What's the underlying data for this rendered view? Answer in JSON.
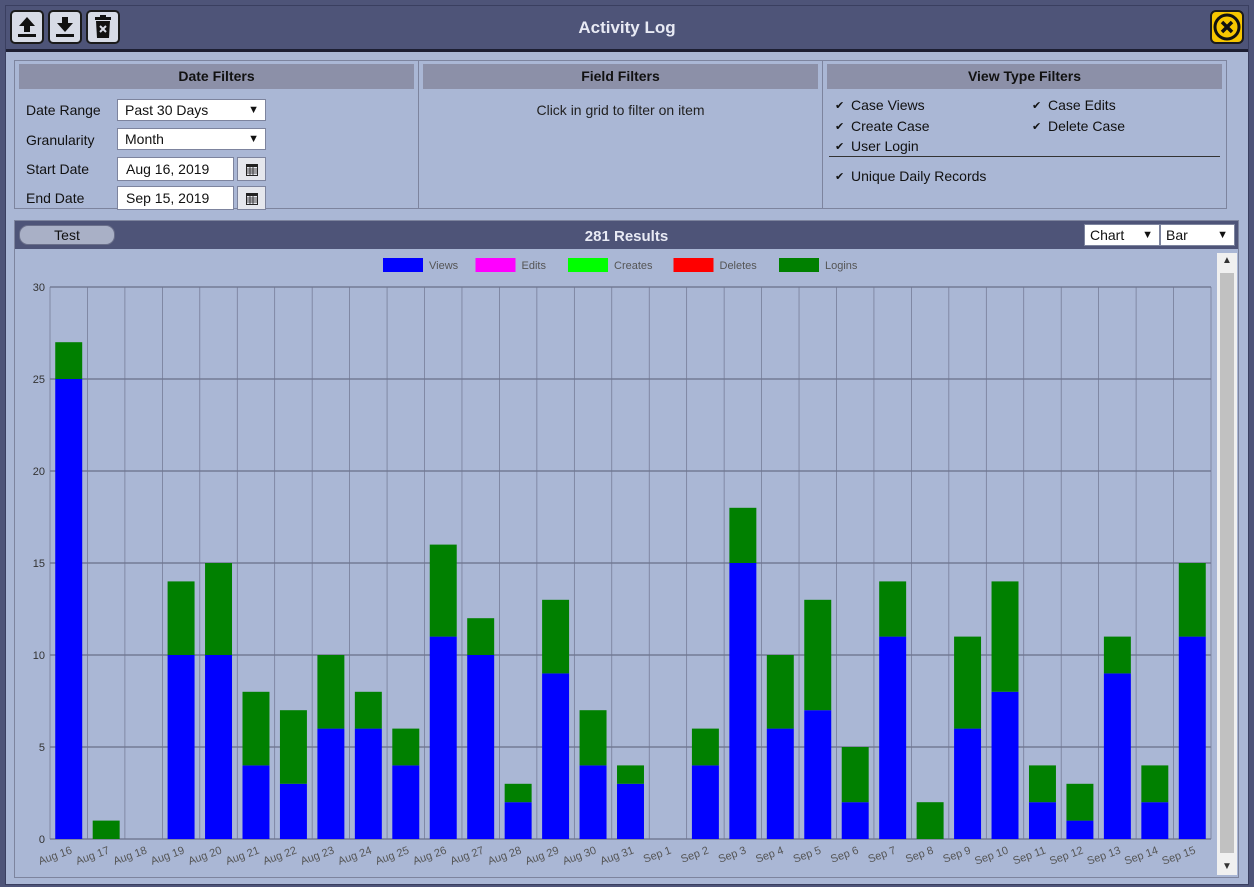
{
  "window": {
    "title": "Activity Log"
  },
  "toolbar": {
    "upload_icon": "upload-icon",
    "download_icon": "download-icon",
    "delete_icon": "delete-icon",
    "close_icon": "close-icon"
  },
  "date_filters": {
    "heading": "Date Filters",
    "range_label": "Date Range",
    "range_value": "Past 30 Days",
    "granularity_label": "Granularity",
    "granularity_value": "Month",
    "start_label": "Start Date",
    "start_value": "Aug 16, 2019",
    "end_label": "End Date",
    "end_value": "Sep 15, 2019"
  },
  "field_filters": {
    "heading": "Field Filters",
    "hint": "Click in grid to filter on item"
  },
  "view_type_filters": {
    "heading": "View Type Filters",
    "case_views": "Case Views",
    "case_edits": "Case Edits",
    "create_case": "Create Case",
    "delete_case": "Delete Case",
    "user_login": "User Login",
    "unique_daily": "Unique Daily Records",
    "check_mark": "✔"
  },
  "results": {
    "test_label": "Test",
    "title": "281 Results",
    "view_select": "Chart",
    "type_select": "Bar"
  },
  "colors": {
    "views": "#0000ff",
    "edits": "#ff00ff",
    "creates": "#00ff00",
    "deletes": "#ff0000",
    "logins": "#008000"
  },
  "chart_data": {
    "type": "bar",
    "stacked": true,
    "categories": [
      "Aug 16",
      "Aug 17",
      "Aug 18",
      "Aug 19",
      "Aug 20",
      "Aug 21",
      "Aug 22",
      "Aug 23",
      "Aug 24",
      "Aug 25",
      "Aug 26",
      "Aug 27",
      "Aug 28",
      "Aug 29",
      "Aug 30",
      "Aug 31",
      "Sep 1",
      "Sep 2",
      "Sep 3",
      "Sep 4",
      "Sep 5",
      "Sep 6",
      "Sep 7",
      "Sep 8",
      "Sep 9",
      "Sep 10",
      "Sep 11",
      "Sep 12",
      "Sep 13",
      "Sep 14",
      "Sep 15"
    ],
    "series": [
      {
        "name": "Views",
        "values": [
          25,
          0,
          0,
          10,
          10,
          4,
          3,
          6,
          6,
          4,
          11,
          10,
          2,
          9,
          4,
          3,
          0,
          4,
          15,
          6,
          7,
          2,
          11,
          0,
          6,
          8,
          2,
          1,
          9,
          2,
          11
        ]
      },
      {
        "name": "Edits",
        "values": [
          0,
          0,
          0,
          0,
          0,
          0,
          0,
          0,
          0,
          0,
          0,
          0,
          0,
          0,
          0,
          0,
          0,
          0,
          0,
          0,
          0,
          0,
          0,
          0,
          0,
          0,
          0,
          0,
          0,
          0,
          0
        ]
      },
      {
        "name": "Creates",
        "values": [
          0,
          0,
          0,
          0,
          0,
          0,
          0,
          0,
          0,
          0,
          0,
          0,
          0,
          0,
          0,
          0,
          0,
          0,
          0,
          0,
          0,
          0,
          0,
          0,
          0,
          0,
          0,
          0,
          0,
          0,
          0
        ]
      },
      {
        "name": "Deletes",
        "values": [
          0,
          0,
          0,
          0,
          0,
          0,
          0,
          0,
          0,
          0,
          0,
          0,
          0,
          0,
          0,
          0,
          0,
          0,
          0,
          0,
          0,
          0,
          0,
          0,
          0,
          0,
          0,
          0,
          0,
          0,
          0
        ]
      },
      {
        "name": "Logins",
        "values": [
          2,
          1,
          0,
          4,
          5,
          4,
          4,
          4,
          2,
          2,
          5,
          2,
          1,
          4,
          3,
          1,
          0,
          2,
          3,
          4,
          6,
          3,
          3,
          2,
          5,
          6,
          2,
          2,
          2,
          2,
          4
        ]
      }
    ],
    "ylim": [
      0,
      30
    ],
    "yticks": [
      0,
      5,
      10,
      15,
      20,
      25,
      30
    ],
    "grid": true,
    "legend": "top-center",
    "xlabel": "",
    "ylabel": ""
  }
}
